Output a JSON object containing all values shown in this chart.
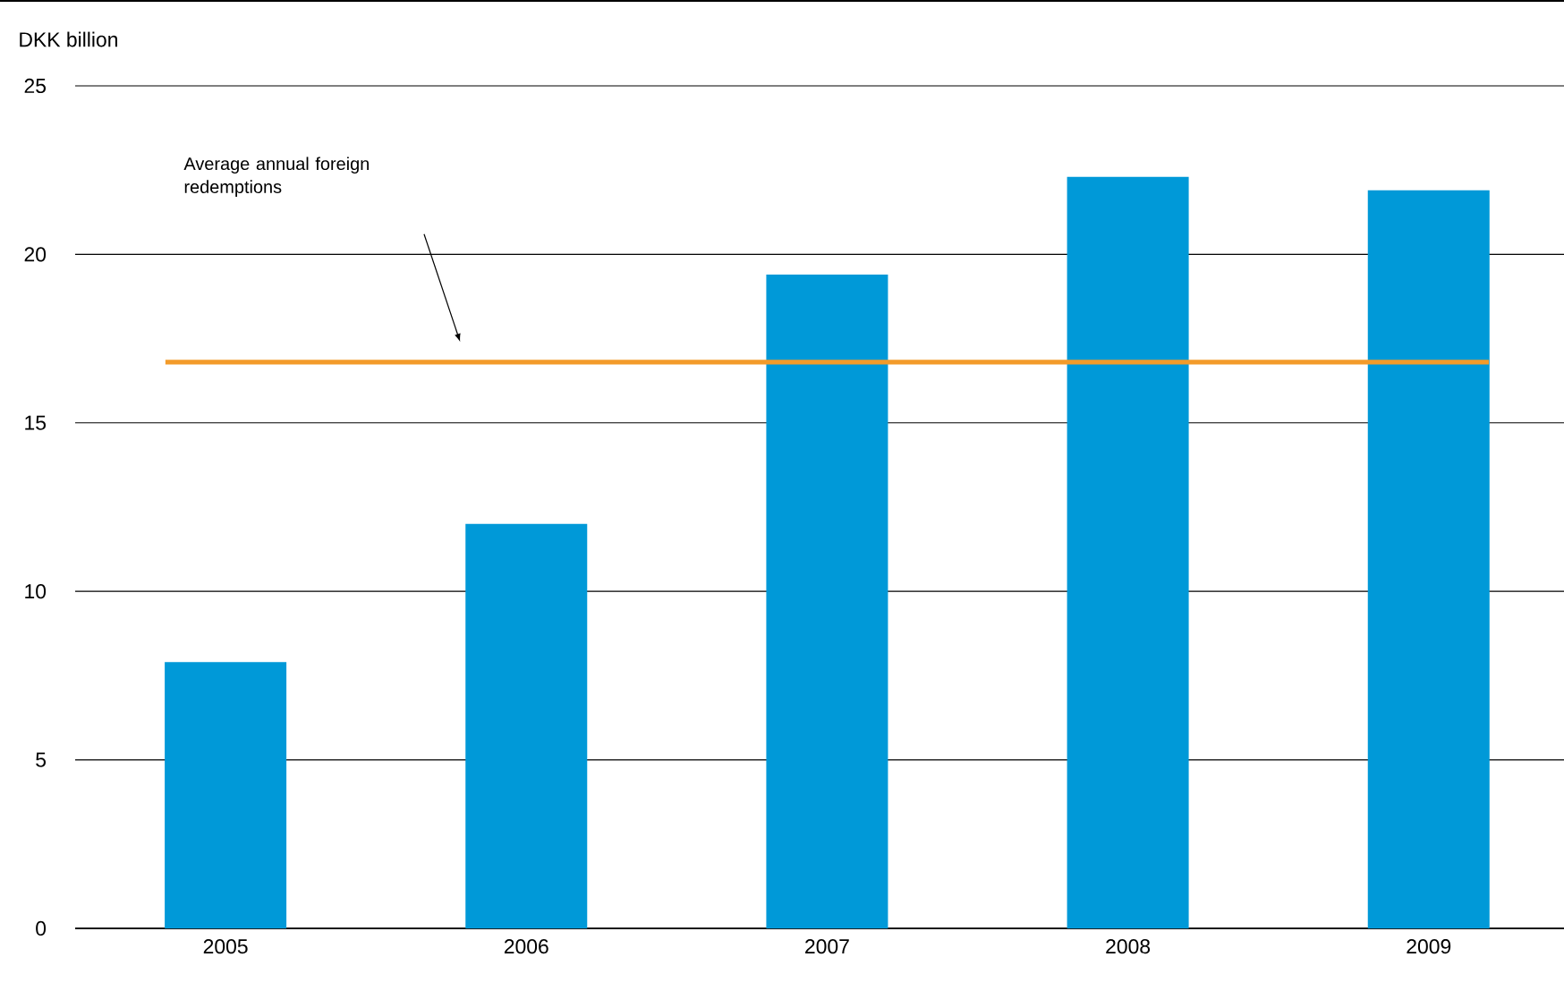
{
  "chart_data": {
    "type": "bar",
    "ylabel": "DKK billion",
    "categories": [
      "2005",
      "2006",
      "2007",
      "2008",
      "2009"
    ],
    "values": [
      7.9,
      12.0,
      19.4,
      22.3,
      21.9
    ],
    "color": "#0099d8",
    "ylim": [
      0,
      25
    ],
    "yticks": [
      0,
      5,
      10,
      15,
      20,
      25
    ],
    "grid": "y",
    "ref_lines": [
      {
        "axis": "y",
        "value": 16.8,
        "color": "#f39b2a"
      }
    ],
    "annotations": [
      "Average annual foreign redemptions"
    ]
  }
}
